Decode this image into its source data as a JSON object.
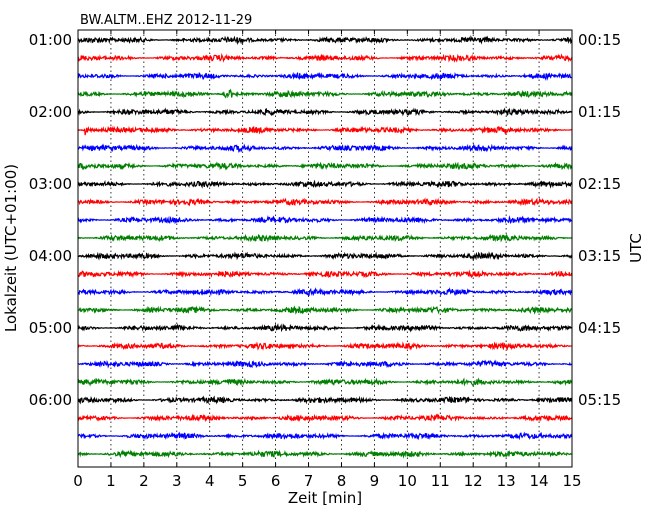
{
  "chart_data": {
    "type": "line",
    "title": "BW.ALTM..EHZ 2012-11-29",
    "xlabel": "Zeit  [min]",
    "ylabel": "Lokalzeit (UTC+01:00)",
    "ylabel_right": "UTC",
    "xlim": [
      0,
      15
    ],
    "x_ticks": [
      "0",
      "1",
      "2",
      "3",
      "4",
      "5",
      "6",
      "7",
      "8",
      "9",
      "10",
      "11",
      "12",
      "13",
      "14",
      "15"
    ],
    "y_ticks_left": [
      "01:00",
      "02:00",
      "03:00",
      "04:00",
      "05:00",
      "06:00"
    ],
    "y_ticks_right": [
      "00:15",
      "01:15",
      "02:15",
      "03:15",
      "04:15",
      "05:15"
    ],
    "grid": true,
    "trace_colors": [
      "#000000",
      "#ff0000",
      "#0000ff",
      "#007f00"
    ],
    "traces": [
      {
        "start_local": "01:00",
        "amplitude": 1.0
      },
      {
        "start_local": "01:15",
        "amplitude": 1.0
      },
      {
        "start_local": "01:30",
        "amplitude": 1.0
      },
      {
        "start_local": "01:45",
        "amplitude": 1.0,
        "events": [
          {
            "minute": 4.4,
            "amplitude": 7
          },
          {
            "minute": 4.6,
            "amplitude": 5
          }
        ]
      },
      {
        "start_local": "02:00",
        "amplitude": 1.0
      },
      {
        "start_local": "02:15",
        "amplitude": 1.0,
        "events": [
          {
            "minute": 0.15,
            "amplitude": 9
          }
        ]
      },
      {
        "start_local": "02:30",
        "amplitude": 1.0
      },
      {
        "start_local": "02:45",
        "amplitude": 1.0
      },
      {
        "start_local": "03:00",
        "amplitude": 1.0
      },
      {
        "start_local": "03:15",
        "amplitude": 1.0
      },
      {
        "start_local": "03:30",
        "amplitude": 1.0
      },
      {
        "start_local": "03:45",
        "amplitude": 1.0
      },
      {
        "start_local": "04:00",
        "amplitude": 1.0
      },
      {
        "start_local": "04:15",
        "amplitude": 1.0
      },
      {
        "start_local": "04:30",
        "amplitude": 1.0
      },
      {
        "start_local": "04:45",
        "amplitude": 1.0
      },
      {
        "start_local": "05:00",
        "amplitude": 1.0
      },
      {
        "start_local": "05:15",
        "amplitude": 1.0
      },
      {
        "start_local": "05:30",
        "amplitude": 1.0
      },
      {
        "start_local": "05:45",
        "amplitude": 1.0
      },
      {
        "start_local": "06:00",
        "amplitude": 1.0
      },
      {
        "start_local": "06:15",
        "amplitude": 1.0
      },
      {
        "start_local": "06:30",
        "amplitude": 1.0
      },
      {
        "start_local": "06:45",
        "amplitude": 1.0,
        "events": [
          {
            "minute": 14.0,
            "amplitude": 2
          }
        ]
      }
    ]
  }
}
